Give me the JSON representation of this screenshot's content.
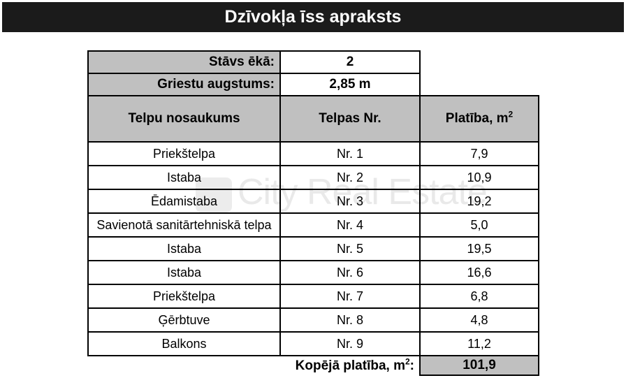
{
  "title": "Dzīvokļa īss apraksts",
  "info": {
    "floor": {
      "label": "Stāvs ēkā:",
      "value": "2"
    },
    "ceiling": {
      "label": "Griestu augstums:",
      "value": "2,85 m"
    }
  },
  "columns": {
    "name": "Telpu nosaukums",
    "nr": "Telpas Nr.",
    "area_base": "Platība, m",
    "area_sup": "2"
  },
  "rooms": [
    {
      "name": "Priekštelpa",
      "nr": "Nr. 1",
      "area": "7,9"
    },
    {
      "name": "Istaba",
      "nr": "Nr. 2",
      "area": "10,9"
    },
    {
      "name": "Ēdamistaba",
      "nr": "Nr. 3",
      "area": "19,2"
    },
    {
      "name": "Savienotā sanitārtehniskā telpa",
      "nr": "Nr. 4",
      "area": "5,0"
    },
    {
      "name": "Istaba",
      "nr": "Nr. 5",
      "area": "19,5"
    },
    {
      "name": "Istaba",
      "nr": "Nr. 6",
      "area": "16,6"
    },
    {
      "name": "Priekštelpa",
      "nr": "Nr. 7",
      "area": "6,8"
    },
    {
      "name": "Ģērbtuve",
      "nr": "Nr. 8",
      "area": "4,8"
    },
    {
      "name": "Balkons",
      "nr": "Nr. 9",
      "area": "11,2"
    }
  ],
  "total": {
    "label_base": "Kopējā platība, m",
    "label_sup": "2",
    "label_suffix": ":",
    "value": "101,9"
  },
  "watermark": {
    "text": "City Real Estate"
  },
  "colors": {
    "titlebar_bg": "#1b1b1b",
    "cell_gray": "#c0c0c0",
    "border": "#000000",
    "watermark": "#ebebeb"
  }
}
